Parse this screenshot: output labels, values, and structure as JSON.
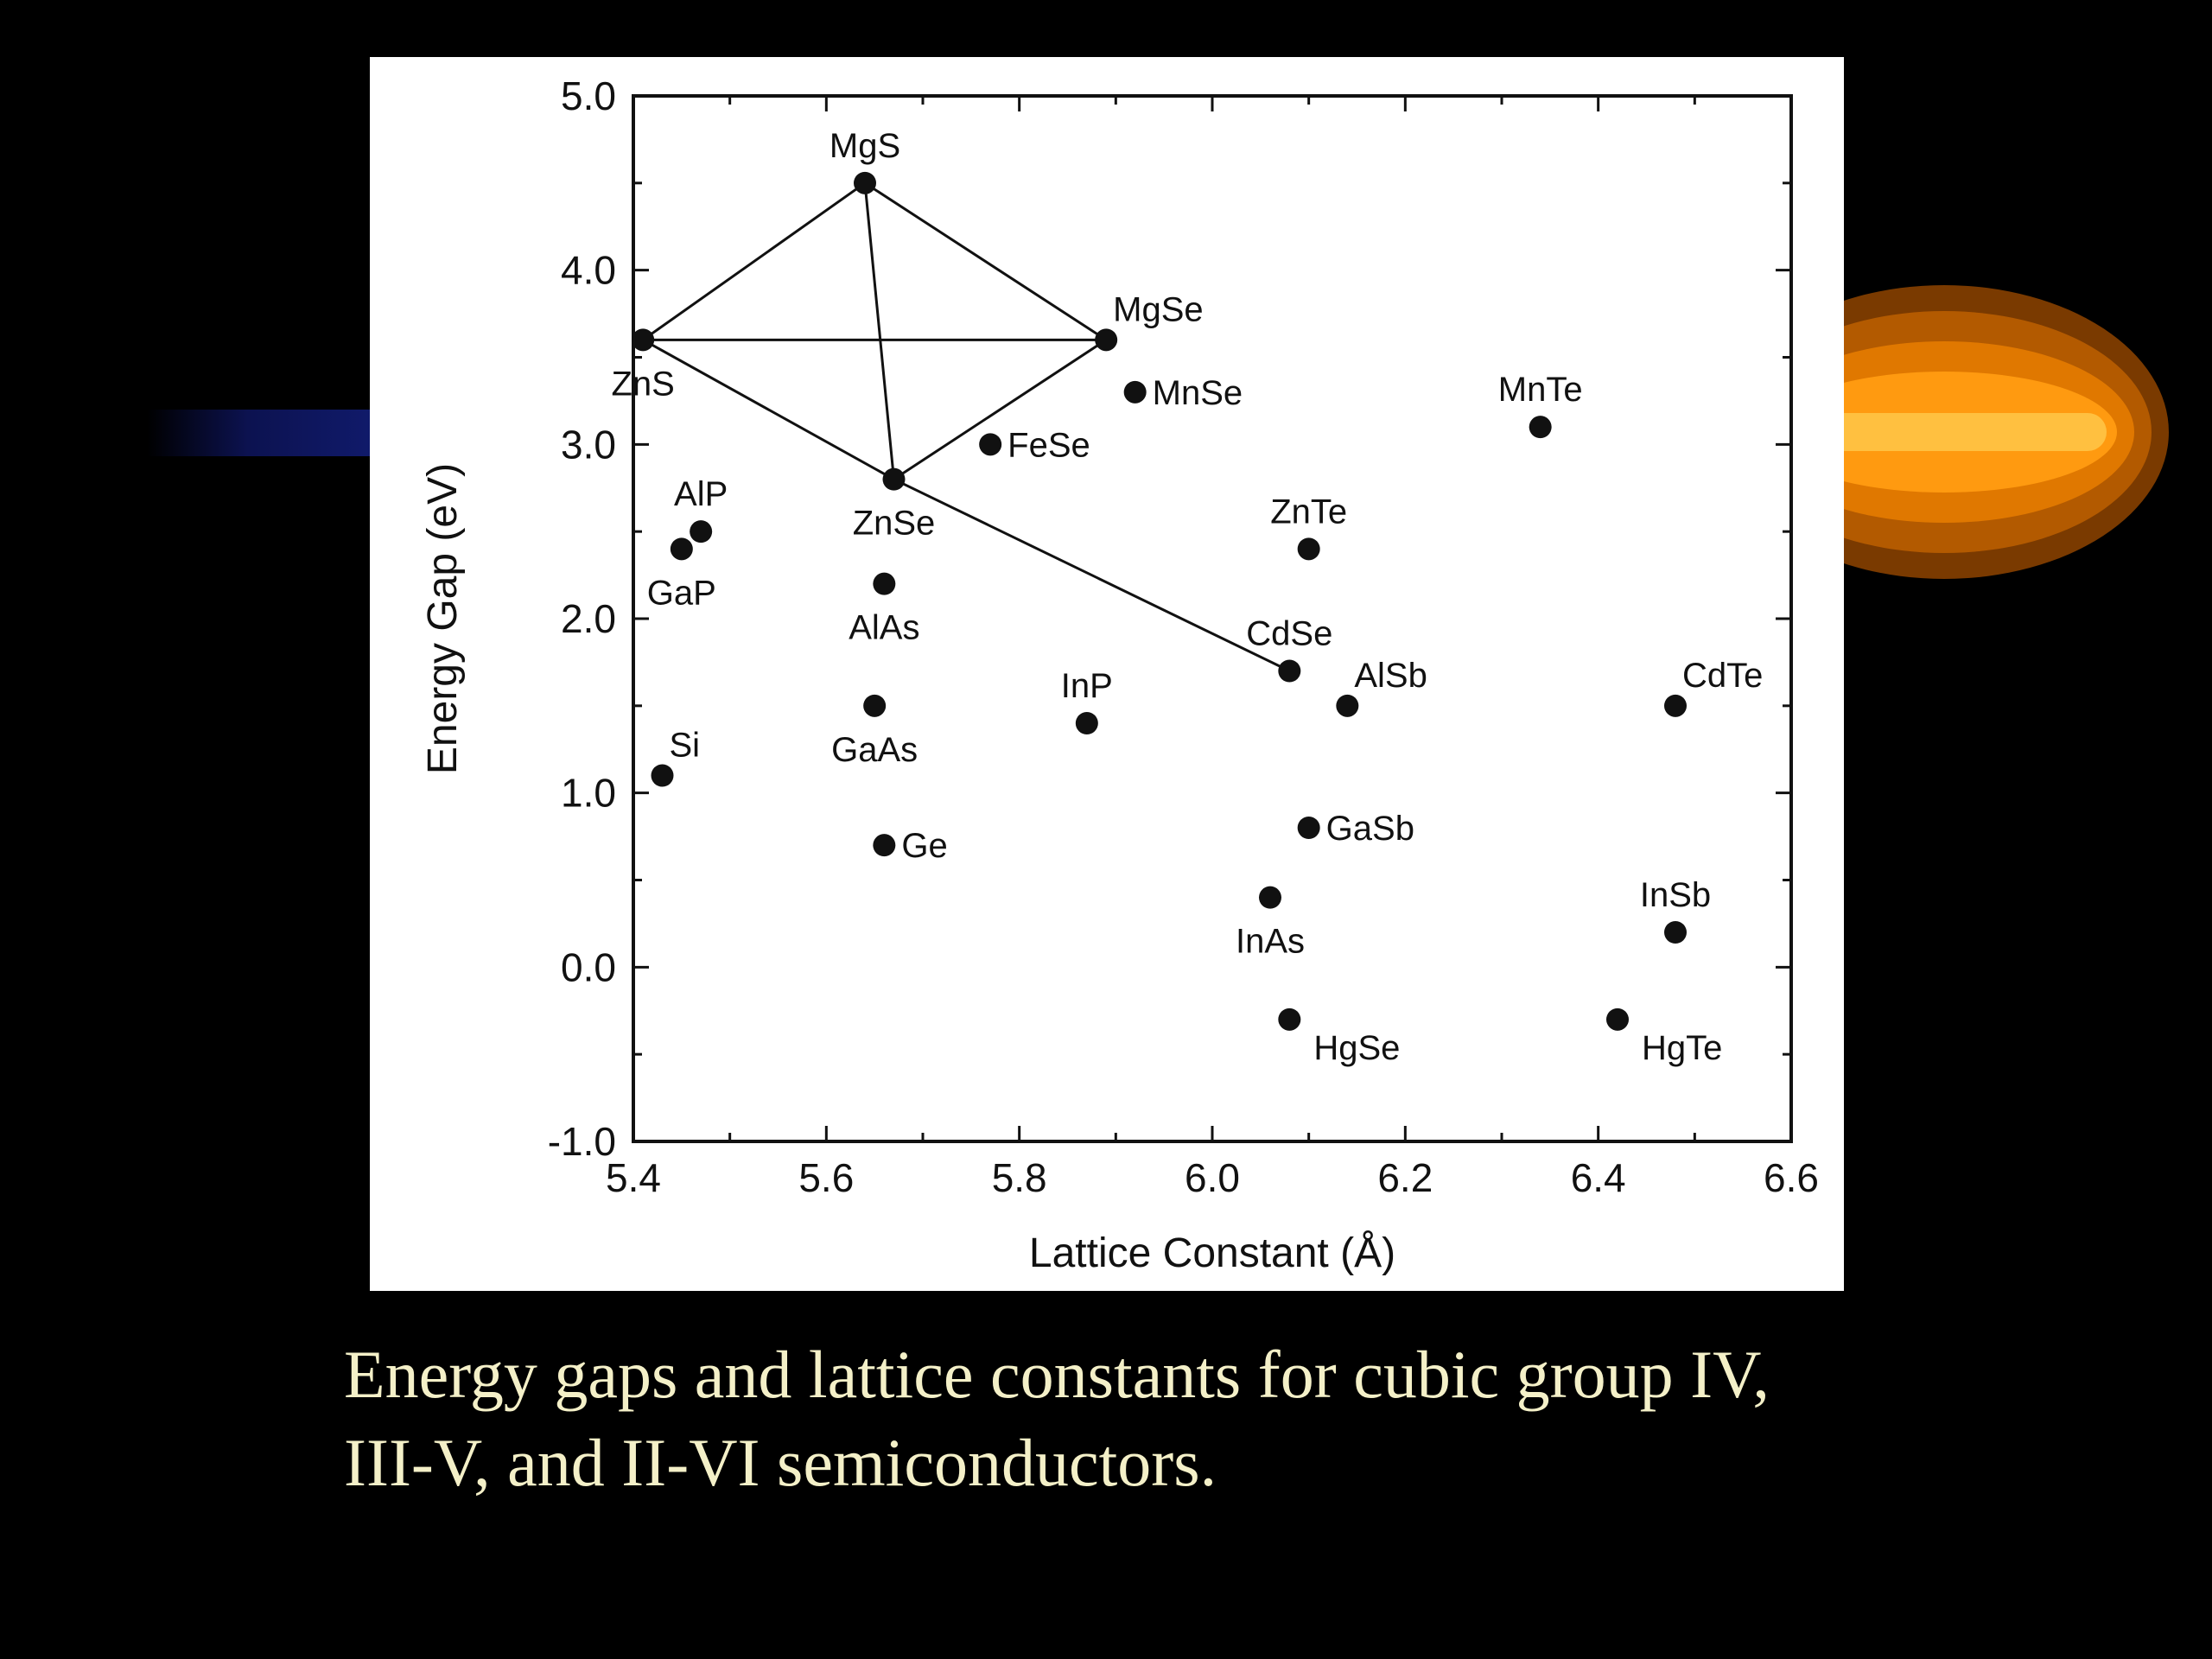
{
  "caption": {
    "line1": "Energy gaps and lattice constants for cubic group IV,",
    "line2": "III-V, and II-VI semiconductors."
  },
  "colors": {
    "background": "#000000",
    "caption_text": "#f4f0c8",
    "panel": "#ffffff",
    "ink": "#111111",
    "decor_orange": "#ff8c00",
    "decor_navy": "#0c1250"
  },
  "chart_data": {
    "type": "scatter",
    "xlabel": "Lattice Constant (Å)",
    "ylabel": "Energy Gap (eV)",
    "xlim": [
      5.4,
      6.6
    ],
    "ylim": [
      -1.0,
      5.0
    ],
    "xticks": [
      "5.4",
      "5.6",
      "5.8",
      "6.0",
      "6.2",
      "6.4",
      "6.6"
    ],
    "yticks": [
      "5.0",
      "4.0",
      "3.0",
      "2.0",
      "1.0",
      "0.0",
      "-1.0"
    ],
    "grid": false,
    "points": [
      {
        "name": "MgS",
        "x": 5.64,
        "y": 4.5,
        "label_pos": "above"
      },
      {
        "name": "MgSe",
        "x": 5.89,
        "y": 3.6,
        "label_pos": "above-right"
      },
      {
        "name": "ZnS",
        "x": 5.41,
        "y": 3.6,
        "label_pos": "below"
      },
      {
        "name": "MnSe",
        "x": 5.92,
        "y": 3.3,
        "label_pos": "right"
      },
      {
        "name": "MnTe",
        "x": 6.34,
        "y": 3.1,
        "label_pos": "above"
      },
      {
        "name": "FeSe",
        "x": 5.77,
        "y": 3.0,
        "label_pos": "right"
      },
      {
        "name": "ZnSe",
        "x": 5.67,
        "y": 2.8,
        "label_pos": "below"
      },
      {
        "name": "AlP",
        "x": 5.47,
        "y": 2.5,
        "label_pos": "above"
      },
      {
        "name": "GaP",
        "x": 5.45,
        "y": 2.4,
        "label_pos": "below"
      },
      {
        "name": "ZnTe",
        "x": 6.1,
        "y": 2.4,
        "label_pos": "above"
      },
      {
        "name": "AlAs",
        "x": 5.66,
        "y": 2.2,
        "label_pos": "below"
      },
      {
        "name": "CdSe",
        "x": 6.08,
        "y": 1.7,
        "label_pos": "above"
      },
      {
        "name": "AlSb",
        "x": 6.14,
        "y": 1.5,
        "label_pos": "above-right"
      },
      {
        "name": "CdTe",
        "x": 6.48,
        "y": 1.5,
        "label_pos": "above-right"
      },
      {
        "name": "GaAs",
        "x": 5.65,
        "y": 1.5,
        "label_pos": "below"
      },
      {
        "name": "InP",
        "x": 5.87,
        "y": 1.4,
        "label_pos": "above"
      },
      {
        "name": "Si",
        "x": 5.43,
        "y": 1.1,
        "label_pos": "above-right"
      },
      {
        "name": "Ge",
        "x": 5.66,
        "y": 0.7,
        "label_pos": "right"
      },
      {
        "name": "GaSb",
        "x": 6.1,
        "y": 0.8,
        "label_pos": "right"
      },
      {
        "name": "InAs",
        "x": 6.06,
        "y": 0.4,
        "label_pos": "below"
      },
      {
        "name": "InSb",
        "x": 6.48,
        "y": 0.2,
        "label_pos": "above"
      },
      {
        "name": "HgSe",
        "x": 6.08,
        "y": -0.3,
        "label_pos": "below-right"
      },
      {
        "name": "HgTe",
        "x": 6.42,
        "y": -0.3,
        "label_pos": "below-right"
      }
    ],
    "connections": [
      [
        "ZnS",
        "MgS"
      ],
      [
        "MgS",
        "MgSe"
      ],
      [
        "ZnS",
        "MgSe"
      ],
      [
        "MgS",
        "ZnSe"
      ],
      [
        "MgSe",
        "ZnSe"
      ],
      [
        "ZnS",
        "ZnSe"
      ],
      [
        "ZnSe",
        "CdSe"
      ]
    ]
  }
}
